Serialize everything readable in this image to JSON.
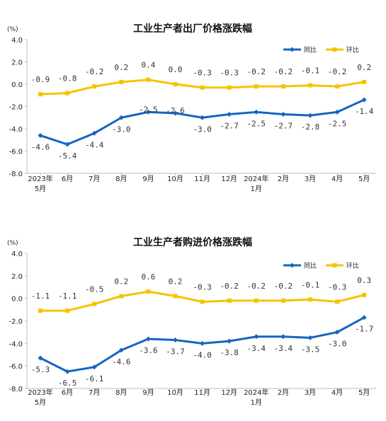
{
  "chart_data": [
    {
      "type": "line",
      "title": "工业生产者出厂价格涨跌幅",
      "unit": "(%)",
      "x_labels": [
        [
          "2023年",
          "5月"
        ],
        [
          "6月"
        ],
        [
          "7月"
        ],
        [
          "8月"
        ],
        [
          "9月"
        ],
        [
          "10月"
        ],
        [
          "11月"
        ],
        [
          "12月"
        ],
        [
          "2024年",
          "1月"
        ],
        [
          "2月"
        ],
        [
          "3月"
        ],
        [
          "4月"
        ],
        [
          "5月"
        ]
      ],
      "y_ticks": [
        "4.0",
        "2.0",
        "0.0",
        "-2.0",
        "-4.0",
        "-6.0",
        "-8.0"
      ],
      "ylim": [
        -8,
        4
      ],
      "legend_position": "top-right",
      "series": [
        {
          "name": "同比",
          "color": "#1565C0",
          "values": [
            -4.6,
            -5.4,
            -4.4,
            -3.0,
            -2.5,
            -2.6,
            -3.0,
            -2.7,
            -2.5,
            -2.7,
            -2.8,
            -2.5,
            -1.4
          ],
          "labels": [
            "-4.6",
            "-5.4",
            "-4.4",
            "-3.0",
            "-2.5",
            "-2.6",
            "-3.0",
            "-2.7",
            "-2.5",
            "-2.7",
            "-2.8",
            "-2.5",
            "-1.4"
          ]
        },
        {
          "name": "环比",
          "color": "#F5C400",
          "values": [
            -0.9,
            -0.8,
            -0.2,
            0.2,
            0.4,
            0.0,
            -0.3,
            -0.3,
            -0.2,
            -0.2,
            -0.1,
            -0.2,
            0.2
          ],
          "labels": [
            "-0.9",
            "-0.8",
            "-0.2",
            "0.2",
            "0.4",
            "0.0",
            "-0.3",
            "-0.3",
            "-0.2",
            "-0.2",
            "-0.1",
            "-0.2",
            "0.2"
          ]
        }
      ]
    },
    {
      "type": "line",
      "title": "工业生产者购进价格涨跌幅",
      "unit": "(%)",
      "x_labels": [
        [
          "2023年",
          "5月"
        ],
        [
          "6月"
        ],
        [
          "7月"
        ],
        [
          "8月"
        ],
        [
          "9月"
        ],
        [
          "10月"
        ],
        [
          "11月"
        ],
        [
          "12月"
        ],
        [
          "2024年",
          "1月"
        ],
        [
          "2月"
        ],
        [
          "3月"
        ],
        [
          "4月"
        ],
        [
          "5月"
        ]
      ],
      "y_ticks": [
        "4.0",
        "2.0",
        "0.0",
        "-2.0",
        "-4.0",
        "-6.0",
        "-8.0"
      ],
      "ylim": [
        -8,
        4
      ],
      "legend_position": "top-right",
      "series": [
        {
          "name": "同比",
          "color": "#1565C0",
          "values": [
            -5.3,
            -6.5,
            -6.1,
            -4.6,
            -3.6,
            -3.7,
            -4.0,
            -3.8,
            -3.4,
            -3.4,
            -3.5,
            -3.0,
            -1.7
          ],
          "labels": [
            "-5.3",
            "-6.5",
            "-6.1",
            "-4.6",
            "-3.6",
            "-3.7",
            "-4.0",
            "-3.8",
            "-3.4",
            "-3.4",
            "-3.5",
            "-3.0",
            "-1.7"
          ]
        },
        {
          "name": "环比",
          "color": "#F5C400",
          "values": [
            -1.1,
            -1.1,
            -0.5,
            0.2,
            0.6,
            0.2,
            -0.3,
            -0.2,
            -0.2,
            -0.2,
            -0.1,
            -0.3,
            0.3
          ],
          "labels": [
            "-1.1",
            "-1.1",
            "-0.5",
            "0.2",
            "0.6",
            "0.2",
            "-0.3",
            "-0.2",
            "-0.2",
            "-0.2",
            "-0.1",
            "-0.3",
            "0.3"
          ]
        }
      ]
    }
  ]
}
